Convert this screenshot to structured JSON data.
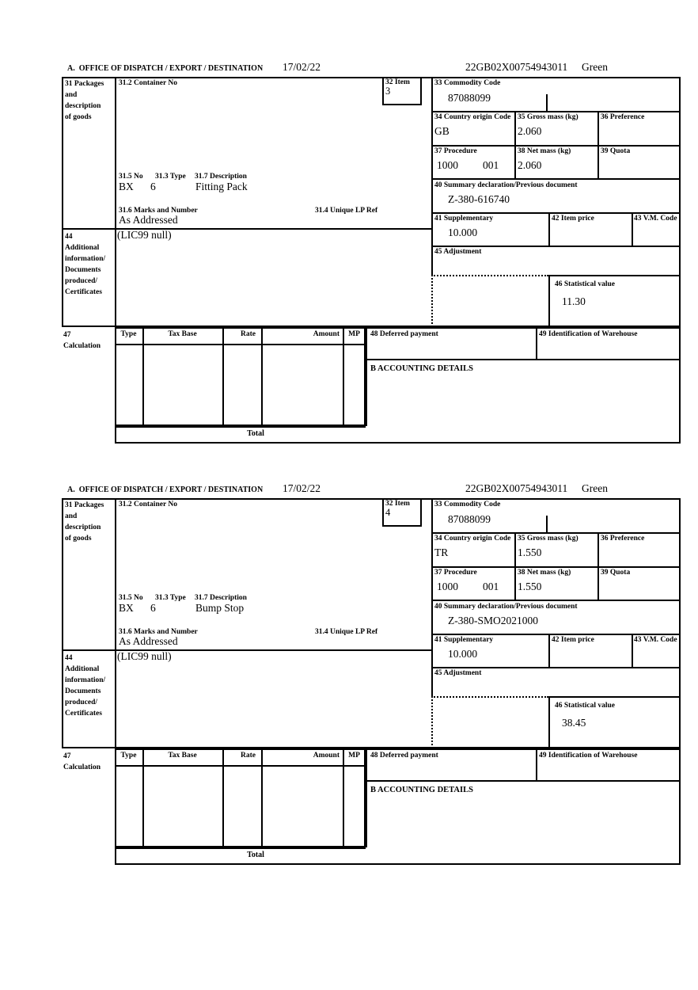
{
  "form": {
    "header": {
      "date": "17/02/22",
      "mrn": "22GB02X00754943011",
      "route": "Green"
    },
    "labels": {
      "header_a": "A.  OFFICE OF DISPATCH / EXPORT / DESTINATION",
      "box31": [
        "31 Packages",
        "and",
        "description",
        "of goods"
      ],
      "container_no": "31.2 Container No",
      "item": "32 Item",
      "commodity": "33 Commodity Code",
      "country": "34 Country origin Code",
      "gross": "35 Gross mass (kg)",
      "preference": "36 Preference",
      "procedure": "37 Procedure",
      "net": "38 Net mass (kg)",
      "quota": "39 Quota",
      "prev_doc": "40 Summary declaration/Previous document",
      "supplementary": "41 Supplementary",
      "item_price": "42 Item price",
      "vm_code": "43 V.M. Code",
      "box44": [
        "44",
        "Additional",
        "information/",
        "Documents",
        "produced/",
        "Certificates"
      ],
      "adjustment": "45 Adjustment",
      "stat_value": "46 Statistical value",
      "box47": [
        "47",
        "Calculation"
      ],
      "pkg_no": "31.5 No",
      "pkg_type": "31.3 Type",
      "pkg_desc": "31.7 Description",
      "marks": "31.6 Marks and Number",
      "lp_ref": "31.4 Unique LP Ref",
      "calc_cols": [
        "Type",
        "Tax Base",
        "Rate",
        "Amount",
        "MP"
      ],
      "deferred": "48 Deferred payment",
      "warehouse": "49 Identification of Warehouse",
      "accounting": "B ACCOUNTING DETAILS",
      "total": "Total"
    },
    "items": [
      {
        "item_no": "3",
        "commodity_code": "87088099",
        "country_origin": "GB",
        "gross_mass": "2.060",
        "procedure": "1000",
        "procedure_extra": "001",
        "net_mass": "2.060",
        "previous_document": "Z-380-616740",
        "supplementary": "10.000",
        "statistical_value": "11.30",
        "package_count": "BX",
        "package_type": "6",
        "goods_description": "Fitting Pack",
        "marks": "As Addressed",
        "additional_information": "(LIC99 null)"
      },
      {
        "item_no": "4",
        "commodity_code": "87088099",
        "country_origin": "TR",
        "gross_mass": "1.550",
        "procedure": "1000",
        "procedure_extra": "001",
        "net_mass": "1.550",
        "previous_document": "Z-380-SMO2021000",
        "supplementary": "10.000",
        "statistical_value": "38.45",
        "package_count": "BX",
        "package_type": "6",
        "goods_description": "Bump Stop",
        "marks": "As Addressed",
        "additional_information": "(LIC99 null)"
      }
    ]
  }
}
